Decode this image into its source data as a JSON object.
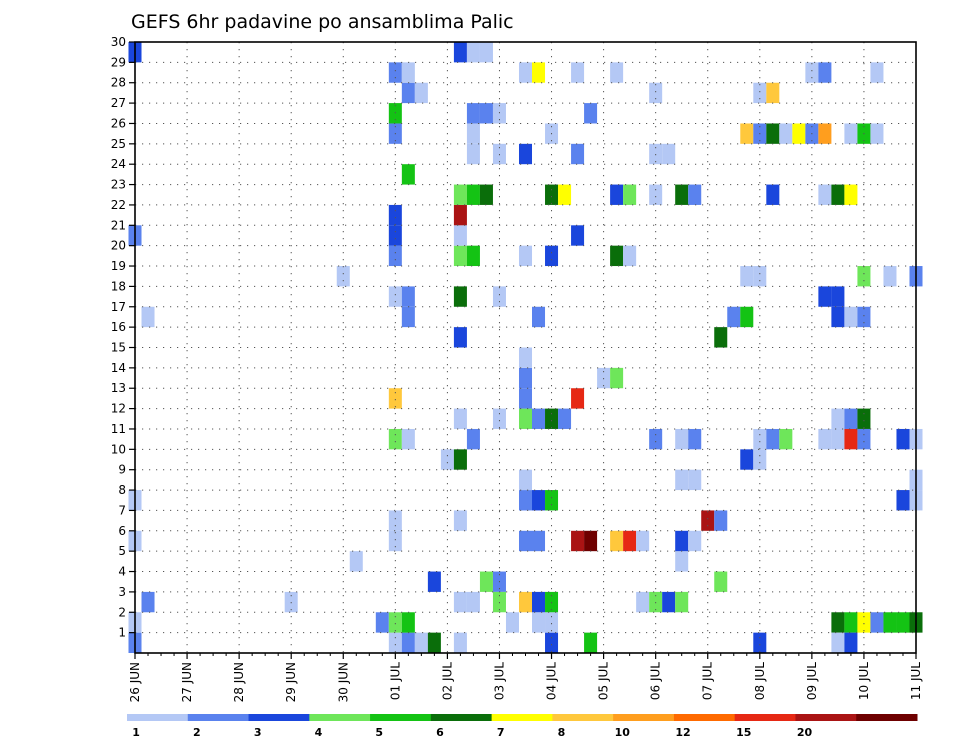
{
  "chart_data": {
    "type": "heatmap",
    "title": "GEFS 6hr padavine po ansamblima Palic",
    "xlabel": "",
    "ylabel": "",
    "x_tick_labels": [
      "26 JUN",
      "27 JUN",
      "28 JUN",
      "29 JUN",
      "30 JUN",
      "01 JUL",
      "02 JUL",
      "03 JUL",
      "04 JUL",
      "05 JUL",
      "06 JUL",
      "07 JUL",
      "08 JUL",
      "09 JUL",
      "10 JUL",
      "11 JUL"
    ],
    "y_tick_labels": [
      "1",
      "2",
      "3",
      "4",
      "5",
      "6",
      "7",
      "8",
      "9",
      "10",
      "11",
      "12",
      "13",
      "14",
      "15",
      "16",
      "17",
      "18",
      "19",
      "20",
      "21",
      "22",
      "23",
      "24",
      "25",
      "26",
      "27",
      "28",
      "29",
      "30"
    ],
    "ylim": [
      0,
      30
    ],
    "xlim_steps": [
      0,
      60
    ],
    "grid": true,
    "colorbar": {
      "levels": [
        "1",
        "2",
        "3",
        "4",
        "5",
        "6",
        "7",
        "8",
        "10",
        "12",
        "15",
        "20"
      ],
      "colors": [
        "#b4c8f5",
        "#5a82ee",
        "#1a46dc",
        "#6ee65a",
        "#14c314",
        "#0a6e0a",
        "#ffff00",
        "#ffc83c",
        "#ff9e1e",
        "#ff6a00",
        "#e62814",
        "#aa1414",
        "#6e0000"
      ]
    },
    "cells": [
      [
        0,
        0,
        "#5a82ee"
      ],
      [
        0,
        1,
        "#b4c8f5"
      ],
      [
        0,
        5,
        "#b4c8f5"
      ],
      [
        0,
        7,
        "#b4c8f5"
      ],
      [
        0,
        20,
        "#5a82ee"
      ],
      [
        0,
        29,
        "#1a46dc"
      ],
      [
        1,
        2,
        "#5a82ee"
      ],
      [
        1,
        16,
        "#b4c8f5"
      ],
      [
        12,
        2,
        "#b4c8f5"
      ],
      [
        16,
        18,
        "#b4c8f5"
      ],
      [
        17,
        4,
        "#b4c8f5"
      ],
      [
        19,
        1,
        "#5a82ee"
      ],
      [
        20,
        0,
        "#b4c8f5"
      ],
      [
        20,
        1,
        "#6ee65a"
      ],
      [
        20,
        5,
        "#b4c8f5"
      ],
      [
        20,
        6,
        "#b4c8f5"
      ],
      [
        20,
        10,
        "#6ee65a"
      ],
      [
        20,
        12,
        "#ffc83c"
      ],
      [
        20,
        17,
        "#b4c8f5"
      ],
      [
        20,
        19,
        "#5a82ee"
      ],
      [
        20,
        20,
        "#1a46dc"
      ],
      [
        20,
        21,
        "#1a46dc"
      ],
      [
        20,
        25,
        "#5a82ee"
      ],
      [
        20,
        26,
        "#14c314"
      ],
      [
        20,
        28,
        "#5a82ee"
      ],
      [
        21,
        0,
        "#5a82ee"
      ],
      [
        21,
        1,
        "#14c314"
      ],
      [
        21,
        10,
        "#b4c8f5"
      ],
      [
        21,
        16,
        "#5a82ee"
      ],
      [
        21,
        17,
        "#5a82ee"
      ],
      [
        21,
        23,
        "#14c314"
      ],
      [
        21,
        27,
        "#5a82ee"
      ],
      [
        21,
        28,
        "#b4c8f5"
      ],
      [
        22,
        0,
        "#b4c8f5"
      ],
      [
        22,
        27,
        "#b4c8f5"
      ],
      [
        23,
        0,
        "#0a6e0a"
      ],
      [
        23,
        3,
        "#1a46dc"
      ],
      [
        24,
        9,
        "#b4c8f5"
      ],
      [
        25,
        0,
        "#b4c8f5"
      ],
      [
        25,
        2,
        "#b4c8f5"
      ],
      [
        25,
        6,
        "#b4c8f5"
      ],
      [
        25,
        9,
        "#0a6e0a"
      ],
      [
        25,
        11,
        "#b4c8f5"
      ],
      [
        25,
        15,
        "#1a46dc"
      ],
      [
        25,
        17,
        "#0a6e0a"
      ],
      [
        25,
        19,
        "#6ee65a"
      ],
      [
        25,
        20,
        "#b4c8f5"
      ],
      [
        25,
        21,
        "#aa1414"
      ],
      [
        25,
        22,
        "#6ee65a"
      ],
      [
        25,
        29,
        "#1a46dc"
      ],
      [
        26,
        2,
        "#b4c8f5"
      ],
      [
        26,
        10,
        "#5a82ee"
      ],
      [
        26,
        19,
        "#14c314"
      ],
      [
        26,
        22,
        "#14c314"
      ],
      [
        26,
        24,
        "#b4c8f5"
      ],
      [
        26,
        25,
        "#b4c8f5"
      ],
      [
        26,
        26,
        "#5a82ee"
      ],
      [
        26,
        29,
        "#b4c8f5"
      ],
      [
        27,
        3,
        "#6ee65a"
      ],
      [
        27,
        22,
        "#0a6e0a"
      ],
      [
        27,
        26,
        "#5a82ee"
      ],
      [
        27,
        29,
        "#b4c8f5"
      ],
      [
        28,
        3,
        "#5a82ee"
      ],
      [
        28,
        2,
        "#6ee65a"
      ],
      [
        28,
        11,
        "#b4c8f5"
      ],
      [
        28,
        17,
        "#b4c8f5"
      ],
      [
        28,
        24,
        "#b4c8f5"
      ],
      [
        28,
        26,
        "#b4c8f5"
      ],
      [
        29,
        1,
        "#b4c8f5"
      ],
      [
        30,
        2,
        "#ffc83c"
      ],
      [
        30,
        5,
        "#5a82ee"
      ],
      [
        30,
        7,
        "#5a82ee"
      ],
      [
        30,
        8,
        "#b4c8f5"
      ],
      [
        30,
        11,
        "#6ee65a"
      ],
      [
        30,
        12,
        "#5a82ee"
      ],
      [
        30,
        13,
        "#5a82ee"
      ],
      [
        30,
        14,
        "#b4c8f5"
      ],
      [
        30,
        19,
        "#b4c8f5"
      ],
      [
        30,
        24,
        "#1a46dc"
      ],
      [
        30,
        28,
        "#b4c8f5"
      ],
      [
        31,
        1,
        "#b4c8f5"
      ],
      [
        31,
        2,
        "#1a46dc"
      ],
      [
        31,
        5,
        "#5a82ee"
      ],
      [
        31,
        7,
        "#1a46dc"
      ],
      [
        31,
        11,
        "#5a82ee"
      ],
      [
        31,
        16,
        "#5a82ee"
      ],
      [
        31,
        28,
        "#ffff00"
      ],
      [
        32,
        0,
        "#1a46dc"
      ],
      [
        32,
        1,
        "#b4c8f5"
      ],
      [
        32,
        2,
        "#14c314"
      ],
      [
        32,
        7,
        "#14c314"
      ],
      [
        32,
        11,
        "#0a6e0a"
      ],
      [
        32,
        19,
        "#1a46dc"
      ],
      [
        32,
        22,
        "#0a6e0a"
      ],
      [
        32,
        25,
        "#b4c8f5"
      ],
      [
        33,
        11,
        "#5a82ee"
      ],
      [
        33,
        22,
        "#ffff00"
      ],
      [
        34,
        5,
        "#aa1414"
      ],
      [
        34,
        12,
        "#e62814"
      ],
      [
        34,
        20,
        "#1a46dc"
      ],
      [
        34,
        24,
        "#5a82ee"
      ],
      [
        34,
        28,
        "#b4c8f5"
      ],
      [
        35,
        5,
        "#6e0000"
      ],
      [
        35,
        0,
        "#14c314"
      ],
      [
        35,
        26,
        "#5a82ee"
      ],
      [
        36,
        13,
        "#b4c8f5"
      ],
      [
        37,
        5,
        "#ffc83c"
      ],
      [
        37,
        13,
        "#6ee65a"
      ],
      [
        37,
        19,
        "#0a6e0a"
      ],
      [
        37,
        22,
        "#1a46dc"
      ],
      [
        37,
        28,
        "#b4c8f5"
      ],
      [
        38,
        5,
        "#e62814"
      ],
      [
        38,
        19,
        "#b4c8f5"
      ],
      [
        38,
        22,
        "#6ee65a"
      ],
      [
        39,
        5,
        "#b4c8f5"
      ],
      [
        39,
        2,
        "#b4c8f5"
      ],
      [
        40,
        2,
        "#6ee65a"
      ],
      [
        40,
        10,
        "#5a82ee"
      ],
      [
        40,
        22,
        "#b4c8f5"
      ],
      [
        40,
        24,
        "#b4c8f5"
      ],
      [
        40,
        27,
        "#b4c8f5"
      ],
      [
        41,
        2,
        "#1a46dc"
      ],
      [
        41,
        24,
        "#b4c8f5"
      ],
      [
        42,
        2,
        "#6ee65a"
      ],
      [
        42,
        4,
        "#b4c8f5"
      ],
      [
        42,
        5,
        "#1a46dc"
      ],
      [
        42,
        8,
        "#b4c8f5"
      ],
      [
        42,
        10,
        "#b4c8f5"
      ],
      [
        42,
        22,
        "#0a6e0a"
      ],
      [
        43,
        5,
        "#b4c8f5"
      ],
      [
        43,
        8,
        "#b4c8f5"
      ],
      [
        43,
        10,
        "#5a82ee"
      ],
      [
        43,
        22,
        "#5a82ee"
      ],
      [
        44,
        6,
        "#aa1414"
      ],
      [
        45,
        3,
        "#6ee65a"
      ],
      [
        45,
        6,
        "#5a82ee"
      ],
      [
        45,
        15,
        "#0a6e0a"
      ],
      [
        46,
        16,
        "#5a82ee"
      ],
      [
        47,
        9,
        "#1a46dc"
      ],
      [
        47,
        16,
        "#14c314"
      ],
      [
        47,
        18,
        "#b4c8f5"
      ],
      [
        47,
        25,
        "#ffc83c"
      ],
      [
        48,
        0,
        "#1a46dc"
      ],
      [
        48,
        9,
        "#b4c8f5"
      ],
      [
        48,
        10,
        "#b4c8f5"
      ],
      [
        48,
        18,
        "#b4c8f5"
      ],
      [
        48,
        25,
        "#5a82ee"
      ],
      [
        48,
        27,
        "#b4c8f5"
      ],
      [
        49,
        10,
        "#5a82ee"
      ],
      [
        49,
        22,
        "#1a46dc"
      ],
      [
        49,
        25,
        "#0a6e0a"
      ],
      [
        49,
        27,
        "#ffc83c"
      ],
      [
        50,
        10,
        "#6ee65a"
      ],
      [
        50,
        25,
        "#b4c8f5"
      ],
      [
        51,
        25,
        "#ffff00"
      ],
      [
        52,
        25,
        "#5a82ee"
      ],
      [
        52,
        28,
        "#b4c8f5"
      ],
      [
        53,
        10,
        "#b4c8f5"
      ],
      [
        53,
        17,
        "#1a46dc"
      ],
      [
        53,
        22,
        "#b4c8f5"
      ],
      [
        53,
        25,
        "#ff9e1e"
      ],
      [
        53,
        28,
        "#5a82ee"
      ],
      [
        54,
        1,
        "#0a6e0a"
      ],
      [
        54,
        0,
        "#b4c8f5"
      ],
      [
        54,
        11,
        "#b4c8f5"
      ],
      [
        54,
        10,
        "#b4c8f5"
      ],
      [
        54,
        16,
        "#1a46dc"
      ],
      [
        54,
        17,
        "#1a46dc"
      ],
      [
        54,
        22,
        "#0a6e0a"
      ],
      [
        55,
        1,
        "#14c314"
      ],
      [
        55,
        0,
        "#1a46dc"
      ],
      [
        55,
        11,
        "#5a82ee"
      ],
      [
        55,
        10,
        "#e62814"
      ],
      [
        55,
        16,
        "#b4c8f5"
      ],
      [
        55,
        22,
        "#ffff00"
      ],
      [
        55,
        25,
        "#b4c8f5"
      ],
      [
        56,
        1,
        "#ffff00"
      ],
      [
        56,
        11,
        "#0a6e0a"
      ],
      [
        56,
        10,
        "#5a82ee"
      ],
      [
        56,
        16,
        "#5a82ee"
      ],
      [
        56,
        18,
        "#6ee65a"
      ],
      [
        56,
        25,
        "#14c314"
      ],
      [
        57,
        1,
        "#5a82ee"
      ],
      [
        57,
        25,
        "#b4c8f5"
      ],
      [
        57,
        28,
        "#b4c8f5"
      ],
      [
        58,
        1,
        "#14c314"
      ],
      [
        58,
        18,
        "#b4c8f5"
      ],
      [
        59,
        1,
        "#14c314"
      ],
      [
        59,
        7,
        "#1a46dc"
      ],
      [
        59,
        10,
        "#1a46dc"
      ],
      [
        60,
        1,
        "#0a6e0a"
      ],
      [
        60,
        7,
        "#b4c8f5"
      ],
      [
        60,
        10,
        "#b4c8f5"
      ],
      [
        60,
        18,
        "#5a82ee"
      ],
      [
        60,
        8,
        "#b4c8f5"
      ]
    ]
  }
}
